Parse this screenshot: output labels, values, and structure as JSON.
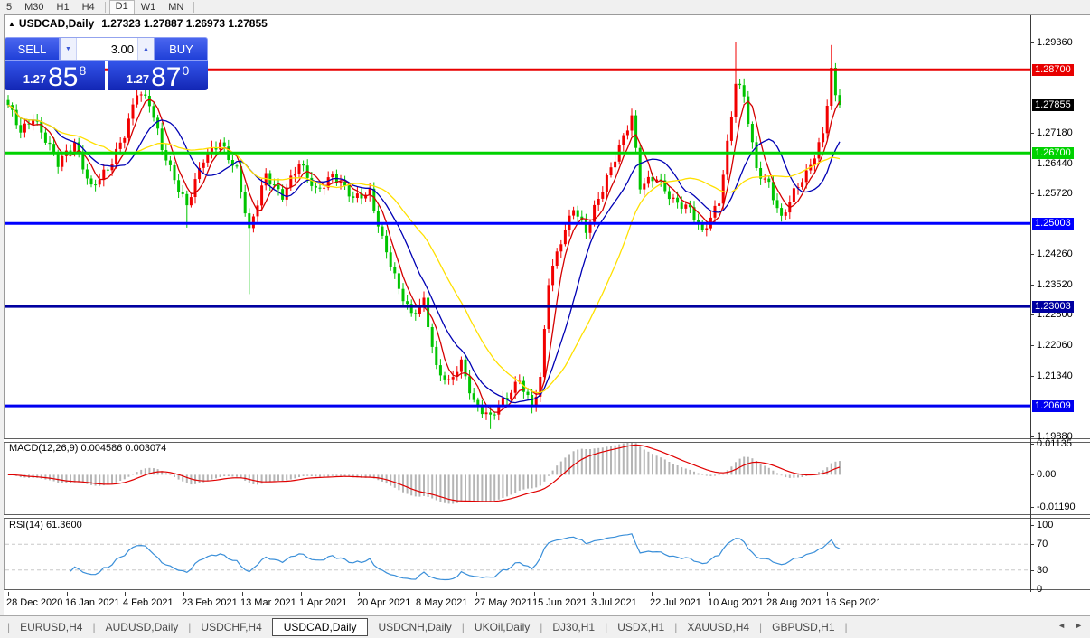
{
  "toolbar": {
    "items": [
      {
        "label": "5"
      },
      {
        "label": "M30"
      },
      {
        "label": "H1"
      },
      {
        "label": "H4"
      },
      {
        "sep": true
      },
      {
        "label": "D1",
        "active": true
      },
      {
        "label": "W1"
      },
      {
        "label": "MN"
      },
      {
        "sep": true
      }
    ]
  },
  "chart_title": {
    "collapse_icon": "▲",
    "symbol": "USDCAD,Daily",
    "ohlc": "1.27323 1.27887 1.26973 1.27855"
  },
  "trade_panel": {
    "sell_label": "SELL",
    "buy_label": "BUY",
    "volume": "3.00",
    "spinner_down": "▼",
    "spinner_up": "▲",
    "sell_price": {
      "small": "1.27",
      "big": "85",
      "sup": "8"
    },
    "buy_price": {
      "small": "1.27",
      "big": "87",
      "sup": "0"
    }
  },
  "price_axis": {
    "ticks": [
      "1.29360",
      "1.27180",
      "1.26440",
      "1.25720",
      "1.24260",
      "1.23520",
      "1.22800",
      "1.22060",
      "1.21340",
      "1.19880"
    ]
  },
  "macd_panel": {
    "header": "MACD(12,26,9) 0.004586 0.003074",
    "axis_labels": [
      "0.01135",
      "0.00",
      "-0.01190"
    ]
  },
  "rsi_panel": {
    "header": "RSI(14) 61.3600",
    "axis_labels": [
      "100",
      "70",
      "30",
      "0"
    ]
  },
  "tabs": {
    "items": [
      "EURUSD,H4",
      "AUDUSD,Daily",
      "USDCHF,H4",
      "USDCAD,Daily",
      "USDCNH,Daily",
      "UKOil,Daily",
      "DJ30,H1",
      "USDX,H1",
      "XAUUSD,H4",
      "GBPUSD,H1"
    ],
    "active_index": 3,
    "scroll_left": "◄",
    "scroll_right": "►"
  },
  "chart_data": {
    "type": "candlestick",
    "symbol": "USDCAD",
    "timeframe": "Daily",
    "ohlc_display": [
      1.27323,
      1.27887,
      1.26973,
      1.27855
    ],
    "price_axis_range": [
      1.1983,
      1.3001
    ],
    "n_candles": 201,
    "bull_color": "#f20000",
    "bear_color": "#00c400",
    "close_anchors": [
      [
        0,
        1.278
      ],
      [
        3,
        1.2725
      ],
      [
        6,
        1.276
      ],
      [
        12,
        1.264
      ],
      [
        16,
        1.27
      ],
      [
        20,
        1.2585
      ],
      [
        24,
        1.2625
      ],
      [
        28,
        1.272
      ],
      [
        31,
        1.282
      ],
      [
        34,
        1.2785
      ],
      [
        37,
        1.268
      ],
      [
        43,
        1.2545
      ],
      [
        47,
        1.265
      ],
      [
        51,
        1.27
      ],
      [
        55,
        1.263
      ],
      [
        58,
        1.2475
      ],
      [
        62,
        1.262
      ],
      [
        66,
        1.257
      ],
      [
        70,
        1.264
      ],
      [
        74,
        1.258
      ],
      [
        78,
        1.262
      ],
      [
        83,
        1.2555
      ],
      [
        87,
        1.258
      ],
      [
        90,
        1.2465
      ],
      [
        94,
        1.2335
      ],
      [
        97,
        1.228
      ],
      [
        100,
        1.232
      ],
      [
        103,
        1.215
      ],
      [
        106,
        1.211
      ],
      [
        109,
        1.2165
      ],
      [
        112,
        1.2075
      ],
      [
        116,
        1.203
      ],
      [
        120,
        1.208
      ],
      [
        123,
        1.213
      ],
      [
        126,
        1.206
      ],
      [
        128,
        1.212
      ],
      [
        130,
        1.2355
      ],
      [
        133,
        1.246
      ],
      [
        136,
        1.2545
      ],
      [
        139,
        1.248
      ],
      [
        143,
        1.258
      ],
      [
        147,
        1.269
      ],
      [
        150,
        1.276
      ],
      [
        152,
        1.2585
      ],
      [
        156,
        1.261
      ],
      [
        160,
        1.256
      ],
      [
        164,
        1.253
      ],
      [
        167,
        1.2475
      ],
      [
        171,
        1.256
      ],
      [
        174,
        1.276
      ],
      [
        175,
        1.284
      ],
      [
        177,
        1.28
      ],
      [
        180,
        1.263
      ],
      [
        183,
        1.26
      ],
      [
        186,
        1.251
      ],
      [
        189,
        1.257
      ],
      [
        192,
        1.262
      ],
      [
        194,
        1.267
      ],
      [
        196,
        1.272
      ],
      [
        198,
        1.287
      ],
      [
        199,
        1.28
      ],
      [
        200,
        1.27855
      ]
    ],
    "spikes": [
      {
        "i": 43,
        "low": 1.249
      },
      {
        "i": 58,
        "low": 1.233
      },
      {
        "i": 116,
        "low": 1.2005
      },
      {
        "i": 175,
        "high": 1.2936
      },
      {
        "i": 198,
        "high": 1.293
      }
    ],
    "h_lines": [
      {
        "price": 1.287,
        "color": "#e80000",
        "label": "1.28700",
        "width": 3
      },
      {
        "price": 1.267,
        "color": "#00d200",
        "label": "1.26700",
        "width": 3
      },
      {
        "price": 1.25003,
        "color": "#0000ff",
        "label": "1.25003",
        "width": 3
      },
      {
        "price": 1.23003,
        "color": "#0000a0",
        "label": "1.23003",
        "width": 3
      },
      {
        "price": 1.20609,
        "color": "#0000f0",
        "label": "1.20609",
        "width": 3
      }
    ],
    "current_price": {
      "value": 1.27855,
      "label": "1.27855",
      "bg": "#000000"
    },
    "moving_averages": [
      {
        "period": 5,
        "color": "#d40000"
      },
      {
        "period": 12,
        "color": "#0000b4"
      },
      {
        "period": 24,
        "color": "#ffe000"
      }
    ],
    "macd": {
      "fast": 12,
      "slow": 26,
      "signal_period": 9,
      "display_values": [
        0.004586,
        0.003074
      ],
      "hist_color": "#b5b5b5",
      "signal_color": "#e00000",
      "axis_range": [
        -0.01322,
        0.01207
      ]
    },
    "rsi": {
      "period": 14,
      "last_value": 61.36,
      "line_color": "#3a8fd9",
      "levels": [
        70,
        30
      ],
      "axis_range": [
        0,
        100
      ]
    },
    "dates": [
      "28 Dec 2020",
      "16 Jan 2021",
      "4 Feb 2021",
      "23 Feb 2021",
      "13 Mar 2021",
      "1 Apr 2021",
      "20 Apr 2021",
      "8 May 2021",
      "27 May 2021",
      "15 Jun 2021",
      "3 Jul 2021",
      "22 Jul 2021",
      "10 Aug 2021",
      "28 Aug 2021",
      "16 Sep 2021"
    ]
  }
}
